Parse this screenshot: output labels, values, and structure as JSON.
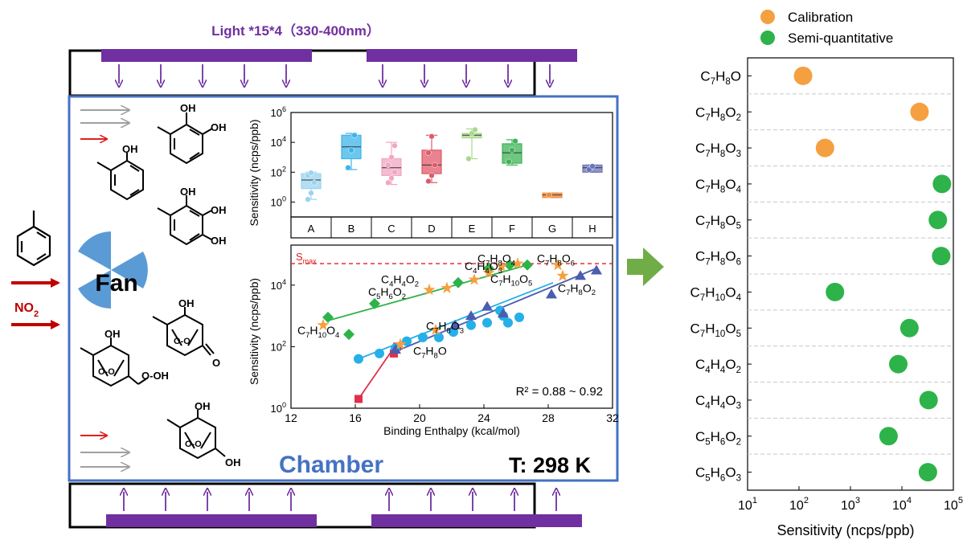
{
  "light_label": "Light *15*4（330-400nm）",
  "fan_label": "Fan",
  "no2_label": "NO",
  "no2_sub": "2",
  "chamber_label": "Chamber",
  "temperature_label": "T: 298 K",
  "colors": {
    "purple": "#7030a0",
    "chamber_blue": "#4472c4",
    "fan_blue": "#5b9bd5",
    "red_arrow": "#c00000",
    "green_arrow": "#70ad47",
    "orange": "#f5a040",
    "green": "#2db34a"
  },
  "chart_data": [
    {
      "type": "box",
      "ylabel": "Sensitivity (ncps/ppb)",
      "yscale": "log",
      "ylim": [
        0.1,
        1000000
      ],
      "yticks": [
        "10⁰",
        "10²",
        "10⁴",
        "10⁶"
      ],
      "categories": [
        "A",
        "B",
        "C",
        "D",
        "E",
        "F",
        "G",
        "H"
      ],
      "colors": [
        "#9ad4ef",
        "#3db4e8",
        "#f2a6c2",
        "#e05a6a",
        "#a8d98a",
        "#3fb357",
        "#ef8a3a",
        "#6a74b8"
      ],
      "boxes": [
        {
          "q1": 8,
          "median": 30,
          "q3": 80,
          "min": 1.5,
          "max": 100,
          "points": [
            1.5,
            4,
            20,
            60,
            90
          ]
        },
        {
          "q1": 800,
          "median": 5000,
          "q3": 30000,
          "min": 150,
          "max": 40000,
          "points": [
            200,
            3000,
            30000
          ]
        },
        {
          "q1": 60,
          "median": 200,
          "q3": 800,
          "min": 15,
          "max": 10000,
          "points": [
            20,
            40,
            100,
            300,
            1000,
            6000
          ]
        },
        {
          "q1": 80,
          "median": 300,
          "q3": 3000,
          "min": 20,
          "max": 30000,
          "points": [
            25,
            60,
            300,
            2000,
            25000
          ]
        },
        {
          "q1": 20000,
          "median": 30000,
          "q3": 40000,
          "min": 800,
          "max": 80000,
          "points": [
            800,
            40000,
            70000
          ]
        },
        {
          "q1": 400,
          "median": 2000,
          "q3": 8000,
          "min": 300,
          "max": 15000,
          "points": [
            500,
            3000,
            12000
          ]
        },
        {
          "q1": 2,
          "median": 3,
          "q3": 4,
          "min": 2,
          "max": 4,
          "points": [
            3
          ]
        },
        {
          "q1": 100,
          "median": 200,
          "q3": 300,
          "min": 100,
          "max": 300,
          "points": [
            150,
            250
          ]
        }
      ]
    },
    {
      "type": "scatter",
      "xlabel": "Binding Enthalpy (kcal/mol)",
      "ylabel": "Sensitivity (ncps/ppb)",
      "yscale": "log",
      "xlim": [
        12,
        32
      ],
      "xticks": [
        12,
        16,
        20,
        24,
        28,
        32
      ],
      "ylim": [
        1,
        200000
      ],
      "yticks": [
        "10⁰",
        "10²",
        "10⁴"
      ],
      "smax_label": "S",
      "smax_sub": "max",
      "smax_value": 50000,
      "r2_label": "R² = 0.88 ~ 0.92",
      "series": [
        {
          "marker": "square",
          "color": "#e0304a",
          "points": [
            [
              16.2,
              2
            ],
            [
              18.4,
              60
            ],
            [
              18.6,
              100
            ]
          ],
          "fit": [
            [
              16.2,
              2
            ],
            [
              18.6,
              130
            ]
          ]
        },
        {
          "marker": "circle",
          "color": "#25b0e8",
          "points": [
            [
              16.2,
              40
            ],
            [
              17.5,
              60
            ],
            [
              18.5,
              90
            ],
            [
              19.2,
              150
            ],
            [
              20.2,
              200
            ],
            [
              21.2,
              200
            ],
            [
              22.1,
              300
            ],
            [
              23.2,
              500
            ],
            [
              24.2,
              600
            ],
            [
              25.2,
              1000
            ],
            [
              25.5,
              600
            ],
            [
              26.2,
              900
            ],
            [
              25,
              1500
            ]
          ],
          "fit": [
            [
              16.2,
              40
            ],
            [
              28.3,
              12000
            ]
          ]
        },
        {
          "marker": "triangle",
          "color": "#4a5db0",
          "points": [
            [
              18.5,
              80
            ],
            [
              22.2,
              500
            ],
            [
              23.2,
              1000
            ],
            [
              24.2,
              2000
            ],
            [
              25.2,
              1200
            ],
            [
              28.2,
              5000
            ],
            [
              30,
              20000
            ],
            [
              31,
              30000
            ]
          ],
          "fit": [
            [
              18.5,
              70
            ],
            [
              31,
              35000
            ]
          ]
        },
        {
          "marker": "diamond",
          "color": "#2db34a",
          "points": [
            [
              14.3,
              900
            ],
            [
              15.6,
              250
            ],
            [
              17.2,
              2500
            ],
            [
              22.4,
              12000
            ],
            [
              24.3,
              35000
            ],
            [
              25.6,
              45000
            ],
            [
              26.7,
              45000
            ]
          ],
          "fit": [
            [
              14.3,
              700
            ],
            [
              26.7,
              45000
            ]
          ]
        },
        {
          "marker": "star",
          "color": "#f5a040",
          "points": [
            [
              14,
              500
            ],
            [
              18.8,
              120
            ],
            [
              21,
              350
            ],
            [
              20.6,
              7000
            ],
            [
              21.7,
              8000
            ],
            [
              23.4,
              15000
            ],
            [
              24.3,
              25000
            ],
            [
              25.1,
              40000
            ],
            [
              26.1,
              50000
            ],
            [
              28.6,
              45000
            ],
            [
              28.9,
              20000
            ]
          ]
        }
      ],
      "annotations": [
        {
          "base": "C",
          "parts": [
            [
              "7",
              1
            ],
            [
              "H",
              0
            ],
            [
              "10",
              1
            ],
            [
              "O",
              0
            ],
            [
              "4",
              1
            ]
          ],
          "x": 12.4,
          "y": 250
        },
        {
          "base": "C",
          "parts": [
            [
              "5",
              1
            ],
            [
              "H",
              0
            ],
            [
              "6",
              1
            ],
            [
              "O",
              0
            ],
            [
              "2",
              1
            ]
          ],
          "x": 16.8,
          "y": 4500
        },
        {
          "base": "C",
          "parts": [
            [
              "4",
              1
            ],
            [
              "H",
              0
            ],
            [
              "4",
              1
            ],
            [
              "O",
              0
            ],
            [
              "2",
              1
            ]
          ],
          "x": 17.6,
          "y": 11500
        },
        {
          "base": "C",
          "parts": [
            [
              "4",
              1
            ],
            [
              "H",
              0
            ],
            [
              "4",
              1
            ],
            [
              "O",
              0
            ],
            [
              "3",
              1
            ]
          ],
          "x": 22.8,
          "y": 31000
        },
        {
          "base": "C",
          "parts": [
            [
              "7",
              1
            ],
            [
              "H",
              0
            ],
            [
              "8",
              1
            ],
            [
              "O",
              0
            ],
            [
              "4",
              1
            ]
          ],
          "x": 23.6,
          "y": 55000
        },
        {
          "base": "C",
          "parts": [
            [
              "7",
              1
            ],
            [
              "H",
              0
            ],
            [
              "8",
              1
            ],
            [
              "O",
              0
            ],
            [
              "6",
              1
            ]
          ],
          "x": 27.3,
          "y": 55000
        },
        {
          "base": "C",
          "parts": [
            [
              "7",
              1
            ],
            [
              "H",
              0
            ],
            [
              "10",
              1
            ],
            [
              "O",
              0
            ],
            [
              "5",
              1
            ]
          ],
          "x": 24.4,
          "y": 12000
        },
        {
          "base": "C",
          "parts": [
            [
              "7",
              1
            ],
            [
              "H",
              0
            ],
            [
              "8",
              1
            ],
            [
              "O",
              0
            ],
            [
              "2",
              1
            ]
          ],
          "x": 28.6,
          "y": 6000
        },
        {
          "base": "C",
          "parts": [
            [
              "7",
              1
            ],
            [
              "H",
              0
            ],
            [
              "8",
              1
            ],
            [
              "O",
              0
            ],
            [
              "3",
              1
            ]
          ],
          "x": 20.4,
          "y": 350
        },
        {
          "base": "C",
          "parts": [
            [
              "7",
              1
            ],
            [
              "H",
              0
            ],
            [
              "8",
              1
            ],
            [
              "O",
              0
            ]
          ],
          "x": 19.6,
          "y": 55
        }
      ]
    },
    {
      "type": "dot",
      "xlabel": "Sensitivity (ncps/ppb)",
      "xscale": "log",
      "xlim": [
        10,
        100000
      ],
      "xticks": [
        "10¹",
        "10²",
        "10³",
        "10⁴",
        "10⁵"
      ],
      "legend": [
        {
          "name": "Calibration",
          "color": "#f5a040"
        },
        {
          "name": "Semi-quantitative",
          "color": "#2db34a"
        }
      ],
      "legend_position": "top",
      "rows": [
        {
          "C": "7",
          "H": "8",
          "O": "",
          "value": 120,
          "group": "Calibration"
        },
        {
          "C": "7",
          "H": "8",
          "O": "2",
          "value": 22000,
          "group": "Calibration"
        },
        {
          "C": "7",
          "H": "8",
          "O": "3",
          "value": 320,
          "group": "Calibration"
        },
        {
          "C": "7",
          "H": "8",
          "O": "4",
          "value": 60000,
          "group": "Semi-quantitative"
        },
        {
          "C": "7",
          "H": "8",
          "O": "5",
          "value": 50000,
          "group": "Semi-quantitative"
        },
        {
          "C": "7",
          "H": "8",
          "O": "6",
          "value": 58000,
          "group": "Semi-quantitative"
        },
        {
          "C": "7",
          "H": "10",
          "O": "4",
          "value": 500,
          "group": "Semi-quantitative"
        },
        {
          "C": "7",
          "H": "10",
          "O": "5",
          "value": 14000,
          "group": "Semi-quantitative"
        },
        {
          "C": "4",
          "H": "4",
          "O": "2",
          "value": 8500,
          "group": "Semi-quantitative"
        },
        {
          "C": "4",
          "H": "4",
          "O": "3",
          "value": 33000,
          "group": "Semi-quantitative"
        },
        {
          "C": "5",
          "H": "6",
          "O": "2",
          "value": 5500,
          "group": "Semi-quantitative"
        },
        {
          "C": "5",
          "H": "6",
          "O": "3",
          "value": 32000,
          "group": "Semi-quantitative"
        }
      ]
    }
  ]
}
